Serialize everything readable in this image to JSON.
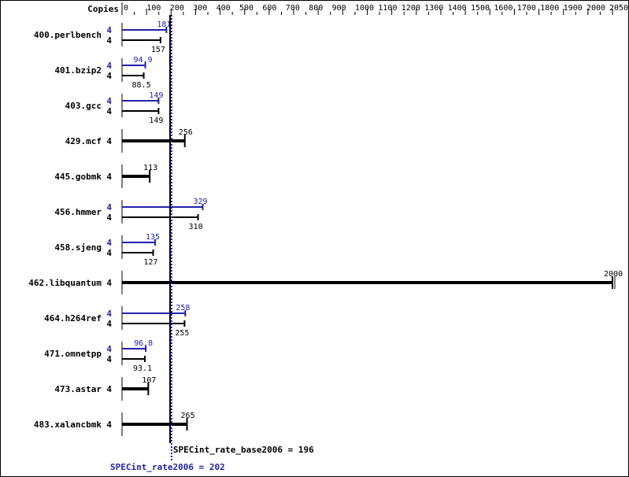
{
  "chart_data": {
    "type": "bar",
    "orientation": "horizontal",
    "copies_header": "Copies",
    "xlim": [
      0,
      2050
    ],
    "x_ticks": [
      0,
      100,
      200,
      300,
      400,
      500,
      600,
      700,
      800,
      900,
      1000,
      1100,
      1200,
      1300,
      1400,
      1500,
      1600,
      1700,
      1800,
      1900,
      2000,
      2050
    ],
    "colors": {
      "peak": "#2222aa",
      "base": "#000000"
    },
    "series": [
      {
        "name": "peak",
        "color": "#2222aa"
      },
      {
        "name": "base",
        "color": "#000000"
      }
    ],
    "benchmarks": [
      {
        "name": "400.perlbench",
        "peak": 181,
        "peak_label": "181",
        "peak_copies": "4",
        "base": 157,
        "base_label": "157",
        "base_copies": "4"
      },
      {
        "name": "401.bzip2",
        "peak": 94.9,
        "peak_label": "94.9",
        "peak_copies": "4",
        "base": 88.5,
        "base_label": "88.5",
        "base_copies": "4"
      },
      {
        "name": "403.gcc",
        "peak": 149,
        "peak_label": "149",
        "peak_copies": "4",
        "base": 149,
        "base_label": "149",
        "base_copies": "4"
      },
      {
        "name": "429.mcf",
        "base": 256,
        "base_label": "256",
        "base_copies": "4"
      },
      {
        "name": "445.gobmk",
        "base": 113,
        "base_label": "113",
        "base_copies": "4"
      },
      {
        "name": "456.hmmer",
        "peak": 329,
        "peak_label": "329",
        "peak_copies": "4",
        "base": 310,
        "base_label": "310",
        "base_copies": "4"
      },
      {
        "name": "458.sjeng",
        "peak": 135,
        "peak_label": "135",
        "peak_copies": "4",
        "base": 127,
        "base_label": "127",
        "base_copies": "4"
      },
      {
        "name": "462.libquantum",
        "base": 2000,
        "base_label": "2000",
        "base_copies": "4"
      },
      {
        "name": "464.h264ref",
        "peak": 258,
        "peak_label": "258",
        "peak_copies": "4",
        "base": 255,
        "base_label": "255",
        "base_copies": "4"
      },
      {
        "name": "471.omnetpp",
        "peak": 96.8,
        "peak_label": "96.8",
        "peak_copies": "4",
        "base": 93.1,
        "base_label": "93.1",
        "base_copies": "4"
      },
      {
        "name": "473.astar",
        "base": 107,
        "base_label": "107",
        "base_copies": "4"
      },
      {
        "name": "483.xalancbmk",
        "base": 265,
        "base_label": "265",
        "base_copies": "4"
      }
    ],
    "reference_lines": {
      "base": {
        "value": 196,
        "label": "SPECint_rate_base2006 = 196"
      },
      "peak": {
        "value": 202,
        "label": "SPECint_rate2006 = 202"
      }
    }
  }
}
